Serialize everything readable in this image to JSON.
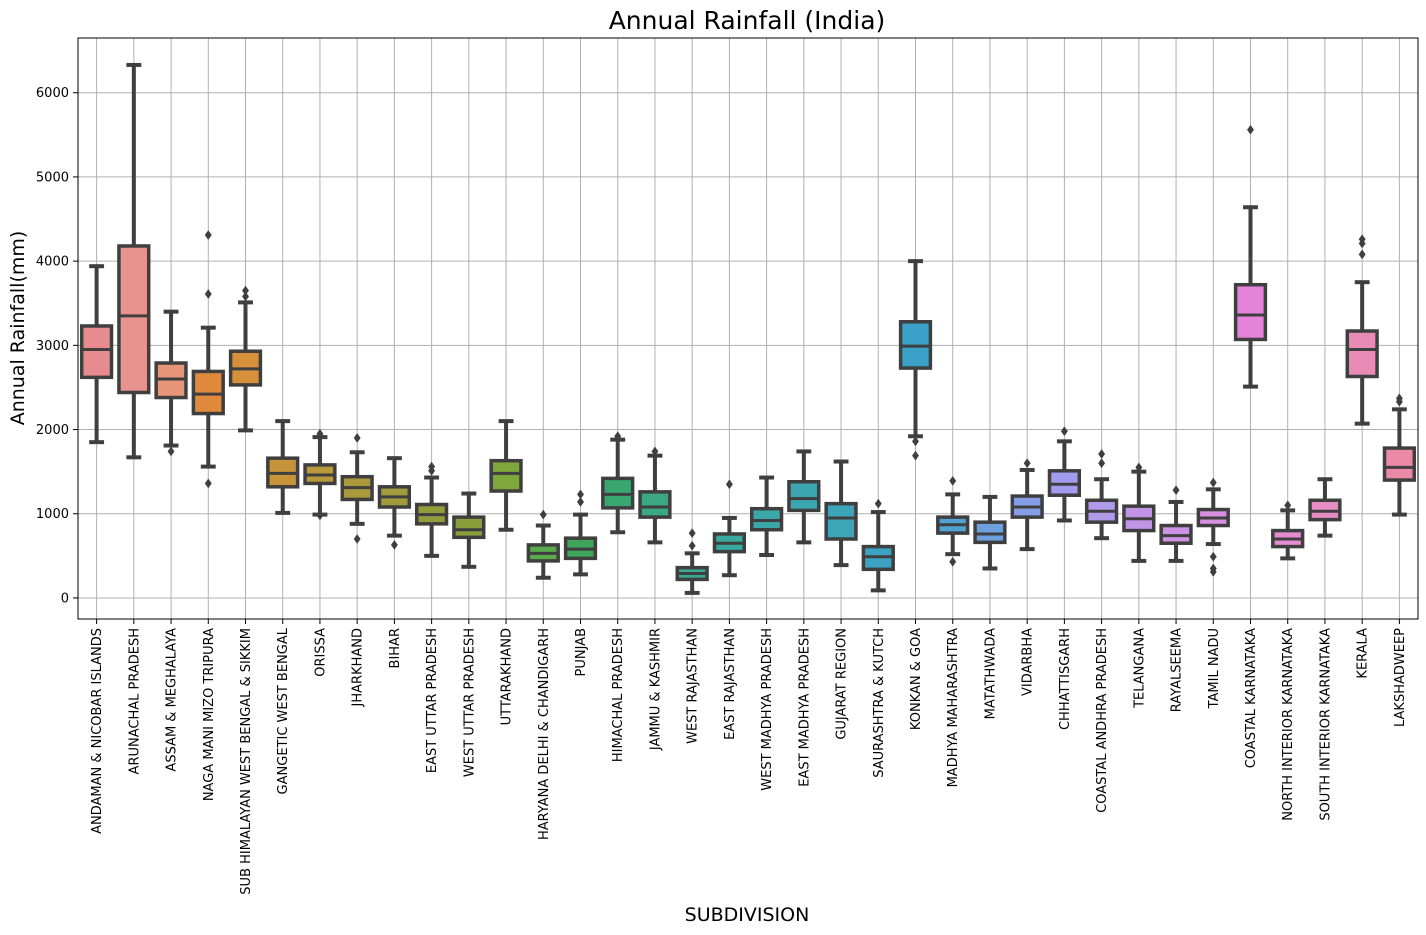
{
  "chart_data": {
    "type": "box",
    "title": "Annual Rainfall (India)",
    "xlabel": "SUBDIVISION",
    "ylabel": "Annual Rainfall(mm)",
    "ylim": [
      -250,
      6650
    ],
    "yticks": [
      0,
      1000,
      2000,
      3000,
      4000,
      5000,
      6000
    ],
    "grid": true,
    "categories": [
      "ANDAMAN & NICOBAR ISLANDS",
      "ARUNACHAL PRADESH",
      "ASSAM & MEGHALAYA",
      "NAGA MANI MIZO TRIPURA",
      "SUB HIMALAYAN WEST BENGAL & SIKKIM",
      "GANGETIC WEST BENGAL",
      "ORISSA",
      "JHARKHAND",
      "BIHAR",
      "EAST UTTAR PRADESH",
      "WEST UTTAR PRADESH",
      "UTTARAKHAND",
      "HARYANA DELHI & CHANDIGARH",
      "PUNJAB",
      "HIMACHAL PRADESH",
      "JAMMU & KASHMIR",
      "WEST RAJASTHAN",
      "EAST RAJASTHAN",
      "WEST MADHYA PRADESH",
      "EAST MADHYA PRADESH",
      "GUJARAT REGION",
      "SAURASHTRA & KUTCH",
      "KONKAN & GOA",
      "MADHYA MAHARASHTRA",
      "MATATHWADA",
      "VIDARBHA",
      "CHHATTISGARH",
      "COASTAL ANDHRA PRADESH",
      "TELANGANA",
      "RAYALSEEMA",
      "TAMIL NADU",
      "COASTAL KARNATAKA",
      "NORTH INTERIOR KARNATAKA",
      "SOUTH INTERIOR KARNATAKA",
      "KERALA",
      "LAKSHADWEEP"
    ],
    "boxes": [
      {
        "whislo": 1850,
        "q1": 2620,
        "med": 2950,
        "q3": 3230,
        "whishi": 3940,
        "fliers": [],
        "color": "#e88b8f"
      },
      {
        "whislo": 1670,
        "q1": 2440,
        "med": 3350,
        "q3": 4180,
        "whishi": 6330,
        "fliers": [],
        "color": "#e9938f"
      },
      {
        "whislo": 1810,
        "q1": 2380,
        "med": 2600,
        "q3": 2790,
        "whishi": 3400,
        "fliers": [
          1740
        ],
        "color": "#e69579"
      },
      {
        "whislo": 1560,
        "q1": 2190,
        "med": 2420,
        "q3": 2690,
        "whishi": 3210,
        "fliers": [
          1360,
          3610,
          4310
        ],
        "color": "#df8a3d"
      },
      {
        "whislo": 1990,
        "q1": 2530,
        "med": 2720,
        "q3": 2930,
        "whishi": 3510,
        "fliers": [
          3580,
          3650
        ],
        "color": "#d6913a"
      },
      {
        "whislo": 1010,
        "q1": 1320,
        "med": 1480,
        "q3": 1660,
        "whishi": 2100,
        "fliers": [],
        "color": "#c8943a"
      },
      {
        "whislo": 990,
        "q1": 1360,
        "med": 1460,
        "q3": 1580,
        "whishi": 1910,
        "fliers": [
          980,
          1950
        ],
        "color": "#b89a3a"
      },
      {
        "whislo": 880,
        "q1": 1170,
        "med": 1310,
        "q3": 1440,
        "whishi": 1730,
        "fliers": [
          700,
          1900
        ],
        "color": "#aa9a3b"
      },
      {
        "whislo": 740,
        "q1": 1080,
        "med": 1200,
        "q3": 1320,
        "whishi": 1660,
        "fliers": [
          630
        ],
        "color": "#a19c3b"
      },
      {
        "whislo": 500,
        "q1": 880,
        "med": 990,
        "q3": 1110,
        "whishi": 1430,
        "fliers": [
          1510,
          1560
        ],
        "color": "#939c3b"
      },
      {
        "whislo": 370,
        "q1": 720,
        "med": 810,
        "q3": 960,
        "whishi": 1240,
        "fliers": [],
        "color": "#8c9e3b"
      },
      {
        "whislo": 810,
        "q1": 1270,
        "med": 1480,
        "q3": 1630,
        "whishi": 2100,
        "fliers": [],
        "color": "#7fa83c"
      },
      {
        "whislo": 240,
        "q1": 440,
        "med": 530,
        "q3": 630,
        "whishi": 860,
        "fliers": [
          990
        ],
        "color": "#58aa4a"
      },
      {
        "whislo": 280,
        "q1": 470,
        "med": 580,
        "q3": 710,
        "whishi": 990,
        "fliers": [
          1140,
          1230
        ],
        "color": "#3ea55a"
      },
      {
        "whislo": 780,
        "q1": 1070,
        "med": 1230,
        "q3": 1420,
        "whishi": 1880,
        "fliers": [
          1920
        ],
        "color": "#3aa771"
      },
      {
        "whislo": 660,
        "q1": 960,
        "med": 1080,
        "q3": 1260,
        "whishi": 1690,
        "fliers": [
          1740
        ],
        "color": "#3aa882"
      },
      {
        "whislo": 60,
        "q1": 220,
        "med": 290,
        "q3": 360,
        "whishi": 530,
        "fliers": [
          620,
          770
        ],
        "color": "#3aa893"
      },
      {
        "whislo": 270,
        "q1": 550,
        "med": 650,
        "q3": 760,
        "whishi": 950,
        "fliers": [
          1350
        ],
        "color": "#3aa99f"
      },
      {
        "whislo": 510,
        "q1": 810,
        "med": 920,
        "q3": 1060,
        "whishi": 1430,
        "fliers": [],
        "color": "#3ba8a8"
      },
      {
        "whislo": 660,
        "q1": 1040,
        "med": 1180,
        "q3": 1380,
        "whishi": 1740,
        "fliers": [],
        "color": "#3ca6b0"
      },
      {
        "whislo": 390,
        "q1": 700,
        "med": 950,
        "q3": 1120,
        "whishi": 1620,
        "fliers": [],
        "color": "#3ca5b8"
      },
      {
        "whislo": 90,
        "q1": 340,
        "med": 490,
        "q3": 610,
        "whishi": 1020,
        "fliers": [
          1120
        ],
        "color": "#3ba2c1"
      },
      {
        "whislo": 1920,
        "q1": 2730,
        "med": 2990,
        "q3": 3280,
        "whishi": 4000,
        "fliers": [
          1690,
          1860
        ],
        "color": "#3aa1c8"
      },
      {
        "whislo": 520,
        "q1": 770,
        "med": 870,
        "q3": 960,
        "whishi": 1230,
        "fliers": [
          430,
          1390
        ],
        "color": "#4ea3d4"
      },
      {
        "whislo": 350,
        "q1": 660,
        "med": 760,
        "q3": 900,
        "whishi": 1200,
        "fliers": [],
        "color": "#6ea0e0"
      },
      {
        "whislo": 580,
        "q1": 960,
        "med": 1080,
        "q3": 1210,
        "whishi": 1520,
        "fliers": [
          1600
        ],
        "color": "#869ee8"
      },
      {
        "whislo": 920,
        "q1": 1220,
        "med": 1350,
        "q3": 1510,
        "whishi": 1860,
        "fliers": [
          1980
        ],
        "color": "#a19ced"
      },
      {
        "whislo": 710,
        "q1": 900,
        "med": 1030,
        "q3": 1160,
        "whishi": 1410,
        "fliers": [
          1600,
          1710
        ],
        "color": "#b29aeb"
      },
      {
        "whislo": 440,
        "q1": 800,
        "med": 940,
        "q3": 1090,
        "whishi": 1500,
        "fliers": [
          1550
        ],
        "color": "#c194e8"
      },
      {
        "whislo": 440,
        "q1": 650,
        "med": 740,
        "q3": 860,
        "whishi": 1140,
        "fliers": [
          1280
        ],
        "color": "#cc92e4"
      },
      {
        "whislo": 640,
        "q1": 860,
        "med": 950,
        "q3": 1050,
        "whishi": 1290,
        "fliers": [
          310,
          350,
          490,
          1370
        ],
        "color": "#d78fe0"
      },
      {
        "whislo": 2510,
        "q1": 3070,
        "med": 3360,
        "q3": 3720,
        "whishi": 4640,
        "fliers": [
          5560
        ],
        "color": "#e583da"
      },
      {
        "whislo": 470,
        "q1": 610,
        "med": 700,
        "q3": 800,
        "whishi": 1040,
        "fliers": [
          1100
        ],
        "color": "#e58bd0"
      },
      {
        "whislo": 740,
        "q1": 930,
        "med": 1030,
        "q3": 1160,
        "whishi": 1410,
        "fliers": [],
        "color": "#e88dc3"
      },
      {
        "whislo": 2070,
        "q1": 2630,
        "med": 2950,
        "q3": 3170,
        "whishi": 3750,
        "fliers": [
          4080,
          4210,
          4260
        ],
        "color": "#e98bb5"
      },
      {
        "whislo": 990,
        "q1": 1400,
        "med": 1550,
        "q3": 1780,
        "whishi": 2240,
        "fliers": [
          2330,
          2370
        ],
        "color": "#ea8aa6"
      }
    ]
  }
}
